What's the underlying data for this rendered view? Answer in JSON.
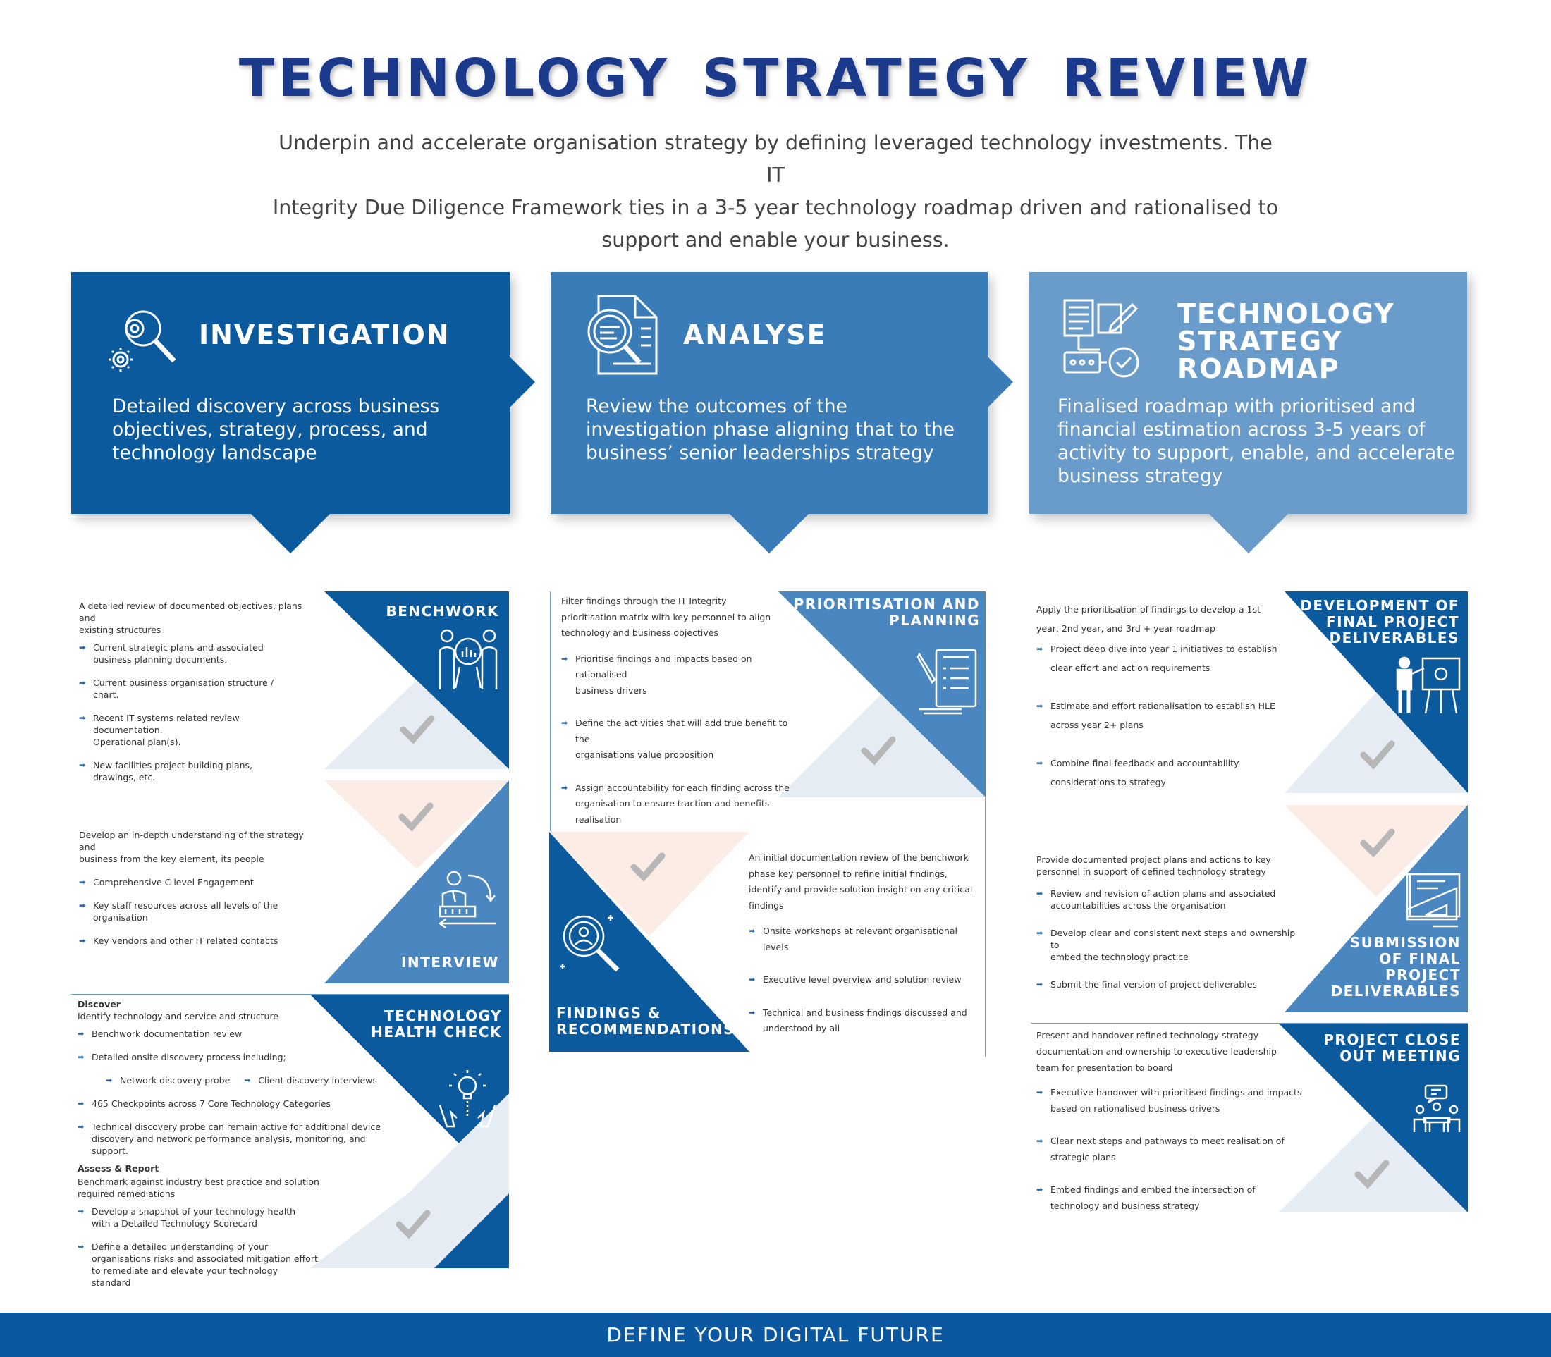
{
  "header": {
    "title": "TECHNOLOGY  STRATEGY  REVIEW",
    "intro_lines": [
      "Underpin and accelerate organisation strategy by defining leveraged technology investments. The IT",
      "Integrity Due Diligence Framework ties in a 3-5 year technology roadmap driven and rationalised to",
      "support and enable your business."
    ]
  },
  "colors": {
    "dark_blue": "#0c5a9e",
    "mid_blue": "#3a7cb8",
    "light_blue": "#6a9ccb",
    "title_blue": "#1b3a8c",
    "check_light": "#e6ecf4",
    "check_peach": "#fbece6",
    "check_mark": "#b7b7b7"
  },
  "cards": [
    {
      "title": "INVESTIGATION",
      "text_lines": [
        "Detailed discovery across business",
        "objectives, strategy, process, and",
        "technology landscape"
      ],
      "icon": "gears-magnifier-icon"
    },
    {
      "title": "ANALYSE",
      "text_lines": [
        "Review the outcomes of the",
        "investigation phase aligning that to the",
        "business’ senior leaderships strategy"
      ],
      "icon": "document-magnifier-icon"
    },
    {
      "title_lines": [
        "TECHNOLOGY",
        "STRATEGY",
        "ROADMAP"
      ],
      "text_lines": [
        "Finalised roadmap with prioritised and",
        "financial estimation across 3-5 years of",
        "activity to support, enable, and accelerate",
        "business strategy"
      ],
      "icon": "roadmap-documents-icon"
    }
  ],
  "col1": {
    "benchwork": {
      "title": "BENCHWORK",
      "icon": "team-chart-icon",
      "intro_lines": [
        "A detailed review of documented objectives, plans and",
        "existing structures"
      ],
      "items": [
        [
          "Current strategic plans and associated",
          "business planning documents."
        ],
        [
          "Current  business organisation structure /",
          "chart."
        ],
        [
          "Recent IT systems related review",
          "documentation.",
          "Operational plan(s)."
        ],
        [
          "New facilities project building plans,",
          "drawings, etc."
        ]
      ]
    },
    "interview": {
      "title": "INTERVIEW",
      "icon": "interview-person-icon",
      "intro_lines": [
        "Develop an in-depth understanding of the strategy and",
        "business from the key element, its people"
      ],
      "items": [
        [
          "Comprehensive C level Engagement"
        ],
        [
          "Key staff resources across all levels of the",
          "organisation"
        ],
        [
          "Key vendors and other IT related contacts"
        ]
      ]
    },
    "health": {
      "title_lines": [
        "TECHNOLOGY",
        "HEALTH CHECK"
      ],
      "icon": "lightbulb-hands-icon",
      "discover_label": "Discover",
      "discover_intro": "Identify technology and service and structure",
      "items1": [
        [
          "Benchwork documentation review"
        ],
        [
          "Detailed onsite discovery process including;"
        ]
      ],
      "sub_items": [
        "Network discovery probe",
        "Client discovery interviews"
      ],
      "items2": [
        [
          "465 Checkpoints across 7 Core Technology Categories"
        ],
        [
          "Technical discovery probe can remain active for additional device",
          "discovery and network performance analysis, monitoring, and",
          "support."
        ]
      ],
      "assess_label": "Assess & Report",
      "assess_intro": [
        "Benchmark against industry best practice and solution",
        "required remediations"
      ],
      "items3": [
        [
          "Develop a snapshot of your technology health",
          "with a Detailed Technology Scorecard"
        ],
        [
          "Define a detailed understanding of your",
          "organisations risks and associated mitigation effort",
          "to remediate and elevate your technology",
          "standard"
        ]
      ]
    }
  },
  "col2": {
    "prioritisation": {
      "title_lines": [
        "PRIORITISATION AND",
        "PLANNING"
      ],
      "icon": "checklist-pen-icon",
      "intro_lines": [
        "Filter findings through the IT Integrity",
        "prioritisation matrix with key personnel to align",
        "technology and business objectives"
      ],
      "items": [
        [
          "Prioritise findings and impacts based on rationalised",
          "business drivers"
        ],
        [
          "Define the activities that will add true benefit to the",
          "organisations value proposition"
        ],
        [
          "Assign accountability for each finding across the",
          "organisation to ensure traction and benefits",
          "realisation"
        ]
      ]
    },
    "findings": {
      "title_lines": [
        "FINDINGS &",
        "RECOMMENDATIONS"
      ],
      "icon": "person-magnifier-icon",
      "intro_lines": [
        "An initial documentation review of the benchwork",
        "phase key personnel to refine initial findings,",
        "identify and provide solution insight on any critical",
        "findings"
      ],
      "items": [
        [
          "Onsite workshops at relevant organisational",
          "levels"
        ],
        [
          "Executive level overview and solution review"
        ],
        [
          "Technical and business findings discussed and",
          "understood by all"
        ]
      ]
    }
  },
  "col3": {
    "development": {
      "title_lines": [
        "DEVELOPMENT OF",
        "FINAL PROJECT",
        "DELIVERABLES"
      ],
      "icon": "presenter-board-icon",
      "intro_lines": [
        "Apply the prioritisation of findings to develop a 1st",
        "year, 2nd year, and 3rd + year roadmap"
      ],
      "items": [
        [
          "Project deep dive into year 1 initiatives to establish",
          "clear effort and action requirements"
        ],
        [
          "Estimate and effort rationalisation to establish HLE",
          "across year 2+ plans"
        ],
        [
          "Combine final feedback and accountability",
          "considerations to strategy"
        ]
      ]
    },
    "submission": {
      "title_lines": [
        "SUBMISSION",
        "OF FINAL",
        "PROJECT",
        "DELIVERABLES"
      ],
      "icon": "blueprint-ruler-icon",
      "intro_lines": [
        "Provide documented project plans and actions to key",
        "personnel in support of defined technology strategy"
      ],
      "items": [
        [
          "Review and revision of action plans and associated",
          "accountabilities across the organisation"
        ],
        [
          "Develop clear and consistent next steps and ownership to",
          "embed the technology practice"
        ],
        [
          "Submit the final version of project deliverables"
        ]
      ]
    },
    "closeout": {
      "title_lines": [
        "PROJECT CLOSE",
        "OUT MEETING"
      ],
      "icon": "meeting-table-icon",
      "intro_lines": [
        "Present and handover refined technology strategy",
        "documentation and ownership to executive leadership",
        "team for presentation to board"
      ],
      "items": [
        [
          "Executive handover with prioritised findings and impacts",
          "based on rationalised business drivers"
        ],
        [
          "Clear next steps and pathways to meet realisation of",
          "strategic plans"
        ],
        [
          "Embed findings and embed the intersection of",
          "technology and business strategy"
        ]
      ]
    }
  },
  "footer": {
    "text": "DEFINE YOUR DIGITAL FUTURE"
  }
}
